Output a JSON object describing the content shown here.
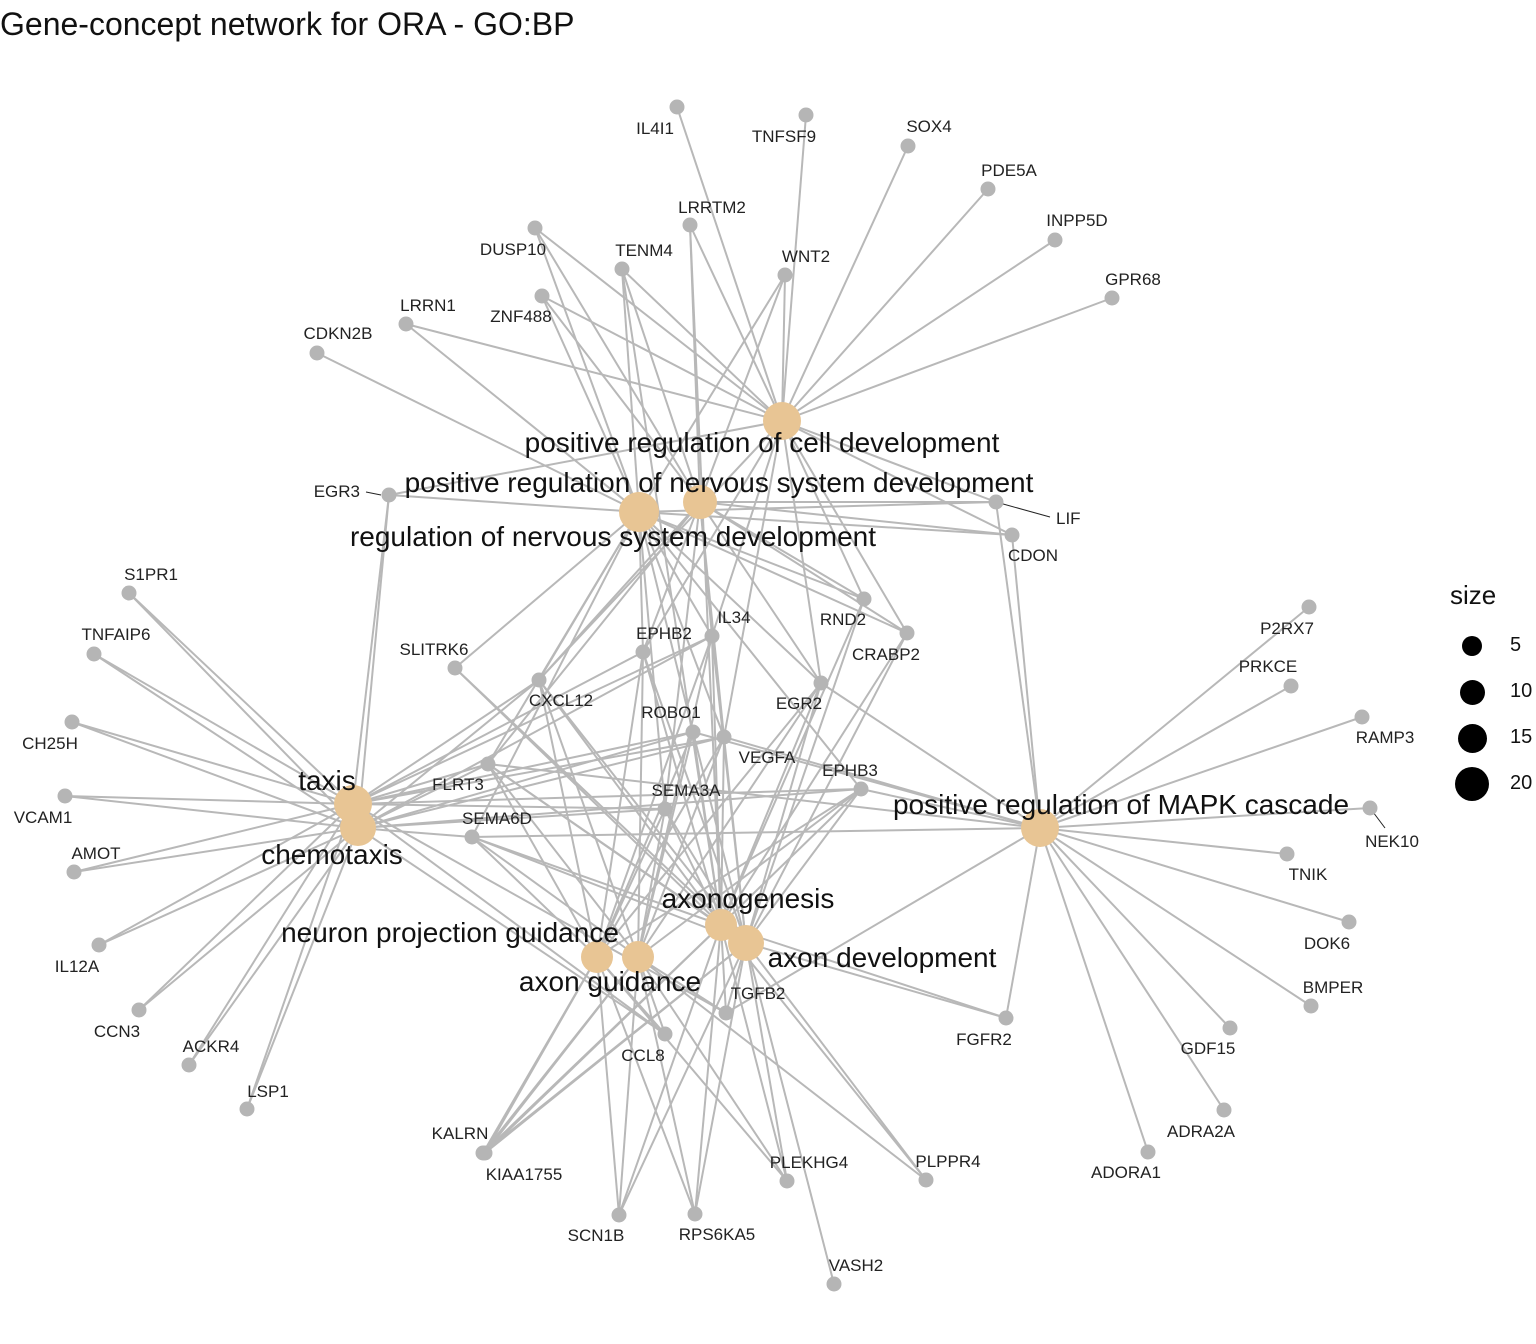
{
  "title": "Gene-concept network for ORA - GO:BP",
  "colors": {
    "edge": "#b8b8b8",
    "gene": "#b5b5b5",
    "category": "#e8c594"
  },
  "legend": {
    "title": "size",
    "entries": [
      {
        "label": "5",
        "size": 5
      },
      {
        "label": "10",
        "size": 10
      },
      {
        "label": "15",
        "size": 15
      },
      {
        "label": "20",
        "size": 20
      }
    ]
  },
  "categories": [
    {
      "id": "pos_cell_dev",
      "label": "positive regulation of cell development"
    },
    {
      "id": "pos_nerv_dev",
      "label": "positive regulation of nervous system development"
    },
    {
      "id": "reg_nerv_dev",
      "label": "regulation of nervous system development"
    },
    {
      "id": "taxis",
      "label": "taxis"
    },
    {
      "id": "chemotaxis",
      "label": "chemotaxis"
    },
    {
      "id": "mapk",
      "label": "positive regulation of MAPK cascade"
    },
    {
      "id": "axonogenesis",
      "label": "axonogenesis"
    },
    {
      "id": "axon_dev",
      "label": "axon development"
    },
    {
      "id": "neuron_proj",
      "label": "neuron projection guidance"
    },
    {
      "id": "axon_guid",
      "label": "axon guidance"
    }
  ],
  "genes": [
    {
      "id": "IL4I1",
      "label": "IL4I1"
    },
    {
      "id": "TNFSF9",
      "label": "TNFSF9"
    },
    {
      "id": "SOX4",
      "label": "SOX4"
    },
    {
      "id": "PDE5A",
      "label": "PDE5A"
    },
    {
      "id": "INPP5D",
      "label": "INPP5D"
    },
    {
      "id": "GPR68",
      "label": "GPR68"
    },
    {
      "id": "LRRTM2",
      "label": "LRRTM2"
    },
    {
      "id": "DUSP10",
      "label": "DUSP10"
    },
    {
      "id": "TENM4",
      "label": "TENM4"
    },
    {
      "id": "WNT2",
      "label": "WNT2"
    },
    {
      "id": "ZNF488",
      "label": "ZNF488"
    },
    {
      "id": "LRRN1",
      "label": "LRRN1"
    },
    {
      "id": "CDKN2B",
      "label": "CDKN2B"
    },
    {
      "id": "EGR3",
      "label": "EGR3"
    },
    {
      "id": "LIF",
      "label": "LIF"
    },
    {
      "id": "CDON",
      "label": "CDON"
    },
    {
      "id": "S1PR1",
      "label": "S1PR1"
    },
    {
      "id": "TNFAIP6",
      "label": "TNFAIP6"
    },
    {
      "id": "CH25H",
      "label": "CH25H"
    },
    {
      "id": "VCAM1",
      "label": "VCAM1"
    },
    {
      "id": "AMOT",
      "label": "AMOT"
    },
    {
      "id": "IL12A",
      "label": "IL12A"
    },
    {
      "id": "CCN3",
      "label": "CCN3"
    },
    {
      "id": "ACKR4",
      "label": "ACKR4"
    },
    {
      "id": "LSP1",
      "label": "LSP1"
    },
    {
      "id": "SLITRK6",
      "label": "SLITRK6"
    },
    {
      "id": "EPHB2",
      "label": "EPHB2"
    },
    {
      "id": "IL34",
      "label": "IL34"
    },
    {
      "id": "RND2",
      "label": "RND2"
    },
    {
      "id": "CRABP2",
      "label": "CRABP2"
    },
    {
      "id": "CXCL12",
      "label": "CXCL12"
    },
    {
      "id": "ROBO1",
      "label": "ROBO1"
    },
    {
      "id": "EGR2",
      "label": "EGR2"
    },
    {
      "id": "VEGFA",
      "label": "VEGFA"
    },
    {
      "id": "FLRT3",
      "label": "FLRT3"
    },
    {
      "id": "EPHB3",
      "label": "EPHB3"
    },
    {
      "id": "SEMA3A",
      "label": "SEMA3A"
    },
    {
      "id": "SEMA6D",
      "label": "SEMA6D"
    },
    {
      "id": "P2RX7",
      "label": "P2RX7"
    },
    {
      "id": "PRKCE",
      "label": "PRKCE"
    },
    {
      "id": "RAMP3",
      "label": "RAMP3"
    },
    {
      "id": "NEK10",
      "label": "NEK10"
    },
    {
      "id": "TNIK",
      "label": "TNIK"
    },
    {
      "id": "DOK6",
      "label": "DOK6"
    },
    {
      "id": "BMPER",
      "label": "BMPER"
    },
    {
      "id": "GDF15",
      "label": "GDF15"
    },
    {
      "id": "ADRA2A",
      "label": "ADRA2A"
    },
    {
      "id": "ADORA1",
      "label": "ADORA1"
    },
    {
      "id": "FGFR2",
      "label": "FGFR2"
    },
    {
      "id": "TGFB2",
      "label": "TGFB2"
    },
    {
      "id": "CCL8",
      "label": "CCL8"
    },
    {
      "id": "KALRN",
      "label": "KALRN"
    },
    {
      "id": "KIAA1755",
      "label": "KIAA1755"
    },
    {
      "id": "SCN1B",
      "label": "SCN1B"
    },
    {
      "id": "RPS6KA5",
      "label": "RPS6KA5"
    },
    {
      "id": "PLEKHG4",
      "label": "PLEKHG4"
    },
    {
      "id": "PLPPR4",
      "label": "PLPPR4"
    },
    {
      "id": "VASH2",
      "label": "VASH2"
    }
  ],
  "edges": [
    [
      "pos_cell_dev",
      "IL4I1"
    ],
    [
      "pos_cell_dev",
      "TNFSF9"
    ],
    [
      "pos_cell_dev",
      "SOX4"
    ],
    [
      "pos_cell_dev",
      "PDE5A"
    ],
    [
      "pos_cell_dev",
      "INPP5D"
    ],
    [
      "pos_cell_dev",
      "GPR68"
    ],
    [
      "pos_cell_dev",
      "LRRTM2"
    ],
    [
      "pos_cell_dev",
      "DUSP10"
    ],
    [
      "pos_cell_dev",
      "TENM4"
    ],
    [
      "pos_cell_dev",
      "WNT2"
    ],
    [
      "pos_cell_dev",
      "ZNF488"
    ],
    [
      "pos_cell_dev",
      "LRRN1"
    ],
    [
      "pos_cell_dev",
      "CDON"
    ],
    [
      "pos_cell_dev",
      "LIF"
    ],
    [
      "pos_cell_dev",
      "EGR2"
    ],
    [
      "pos_cell_dev",
      "RND2"
    ],
    [
      "pos_cell_dev",
      "CRABP2"
    ],
    [
      "pos_cell_dev",
      "EPHB2"
    ],
    [
      "pos_cell_dev",
      "IL34"
    ],
    [
      "pos_cell_dev",
      "CXCL12"
    ],
    [
      "pos_cell_dev",
      "VEGFA"
    ],
    [
      "pos_cell_dev",
      "EGR3"
    ],
    [
      "pos_nerv_dev",
      "DUSP10"
    ],
    [
      "pos_nerv_dev",
      "TENM4"
    ],
    [
      "pos_nerv_dev",
      "LRRTM2"
    ],
    [
      "pos_nerv_dev",
      "WNT2"
    ],
    [
      "pos_nerv_dev",
      "ZNF488"
    ],
    [
      "pos_nerv_dev",
      "LIF"
    ],
    [
      "pos_nerv_dev",
      "CDON"
    ],
    [
      "pos_nerv_dev",
      "RND2"
    ],
    [
      "pos_nerv_dev",
      "CRABP2"
    ],
    [
      "pos_nerv_dev",
      "EPHB2"
    ],
    [
      "pos_nerv_dev",
      "IL34"
    ],
    [
      "pos_nerv_dev",
      "EGR2"
    ],
    [
      "pos_nerv_dev",
      "VEGFA"
    ],
    [
      "pos_nerv_dev",
      "SEMA3A"
    ],
    [
      "pos_nerv_dev",
      "FLRT3"
    ],
    [
      "pos_nerv_dev",
      "CXCL12"
    ],
    [
      "reg_nerv_dev",
      "LRRN1"
    ],
    [
      "reg_nerv_dev",
      "CDKN2B"
    ],
    [
      "reg_nerv_dev",
      "TENM4"
    ],
    [
      "reg_nerv_dev",
      "DUSP10"
    ],
    [
      "reg_nerv_dev",
      "WNT2"
    ],
    [
      "reg_nerv_dev",
      "ZNF488"
    ],
    [
      "reg_nerv_dev",
      "LIF"
    ],
    [
      "reg_nerv_dev",
      "CDON"
    ],
    [
      "reg_nerv_dev",
      "SLITRK6"
    ],
    [
      "reg_nerv_dev",
      "CXCL12"
    ],
    [
      "reg_nerv_dev",
      "EPHB2"
    ],
    [
      "reg_nerv_dev",
      "IL34"
    ],
    [
      "reg_nerv_dev",
      "ROBO1"
    ],
    [
      "reg_nerv_dev",
      "VEGFA"
    ],
    [
      "reg_nerv_dev",
      "EGR2"
    ],
    [
      "reg_nerv_dev",
      "RND2"
    ],
    [
      "reg_nerv_dev",
      "CRABP2"
    ],
    [
      "reg_nerv_dev",
      "SEMA3A"
    ],
    [
      "reg_nerv_dev",
      "FLRT3"
    ],
    [
      "reg_nerv_dev",
      "SEMA6D"
    ],
    [
      "reg_nerv_dev",
      "EPHB3"
    ],
    [
      "reg_nerv_dev",
      "EGR3"
    ],
    [
      "taxis",
      "S1PR1"
    ],
    [
      "taxis",
      "TNFAIP6"
    ],
    [
      "taxis",
      "CH25H"
    ],
    [
      "taxis",
      "VCAM1"
    ],
    [
      "taxis",
      "AMOT"
    ],
    [
      "taxis",
      "IL12A"
    ],
    [
      "taxis",
      "CCN3"
    ],
    [
      "taxis",
      "ACKR4"
    ],
    [
      "taxis",
      "LSP1"
    ],
    [
      "taxis",
      "CXCL12"
    ],
    [
      "taxis",
      "IL34"
    ],
    [
      "taxis",
      "ROBO1"
    ],
    [
      "taxis",
      "VEGFA"
    ],
    [
      "taxis",
      "FLRT3"
    ],
    [
      "taxis",
      "SEMA3A"
    ],
    [
      "taxis",
      "EGR3"
    ],
    [
      "taxis",
      "EPHB2"
    ],
    [
      "taxis",
      "CCL8"
    ],
    [
      "taxis",
      "TGFB2"
    ],
    [
      "taxis",
      "EPHB3"
    ],
    [
      "chemotaxis",
      "S1PR1"
    ],
    [
      "chemotaxis",
      "TNFAIP6"
    ],
    [
      "chemotaxis",
      "CH25H"
    ],
    [
      "chemotaxis",
      "VCAM1"
    ],
    [
      "chemotaxis",
      "AMOT"
    ],
    [
      "chemotaxis",
      "IL12A"
    ],
    [
      "chemotaxis",
      "CCN3"
    ],
    [
      "chemotaxis",
      "ACKR4"
    ],
    [
      "chemotaxis",
      "LSP1"
    ],
    [
      "chemotaxis",
      "CXCL12"
    ],
    [
      "chemotaxis",
      "ROBO1"
    ],
    [
      "chemotaxis",
      "VEGFA"
    ],
    [
      "chemotaxis",
      "SEMA6D"
    ],
    [
      "chemotaxis",
      "CCL8"
    ],
    [
      "chemotaxis",
      "SEMA3A"
    ],
    [
      "chemotaxis",
      "FLRT3"
    ],
    [
      "chemotaxis",
      "EGR3"
    ],
    [
      "chemotaxis",
      "EPHB3"
    ],
    [
      "chemotaxis",
      "IL34"
    ],
    [
      "mapk",
      "P2RX7"
    ],
    [
      "mapk",
      "PRKCE"
    ],
    [
      "mapk",
      "RAMP3"
    ],
    [
      "mapk",
      "NEK10"
    ],
    [
      "mapk",
      "TNIK"
    ],
    [
      "mapk",
      "DOK6"
    ],
    [
      "mapk",
      "BMPER"
    ],
    [
      "mapk",
      "GDF15"
    ],
    [
      "mapk",
      "ADRA2A"
    ],
    [
      "mapk",
      "ADORA1"
    ],
    [
      "mapk",
      "FGFR2"
    ],
    [
      "mapk",
      "LIF"
    ],
    [
      "mapk",
      "CDON"
    ],
    [
      "mapk",
      "VEGFA"
    ],
    [
      "mapk",
      "EPHB3"
    ],
    [
      "mapk",
      "SEMA6D"
    ],
    [
      "mapk",
      "EGR2"
    ],
    [
      "mapk",
      "TGFB2"
    ],
    [
      "mapk",
      "ROBO1"
    ],
    [
      "mapk",
      "FLRT3"
    ],
    [
      "axonogenesis",
      "EPHB2"
    ],
    [
      "axonogenesis",
      "IL34"
    ],
    [
      "axonogenesis",
      "CXCL12"
    ],
    [
      "axonogenesis",
      "ROBO1"
    ],
    [
      "axonogenesis",
      "VEGFA"
    ],
    [
      "axonogenesis",
      "FLRT3"
    ],
    [
      "axonogenesis",
      "SEMA3A"
    ],
    [
      "axonogenesis",
      "SEMA6D"
    ],
    [
      "axonogenesis",
      "EPHB3"
    ],
    [
      "axonogenesis",
      "RND2"
    ],
    [
      "axonogenesis",
      "CRABP2"
    ],
    [
      "axonogenesis",
      "EGR2"
    ],
    [
      "axonogenesis",
      "SLITRK6"
    ],
    [
      "axonogenesis",
      "TGFB2"
    ],
    [
      "axonogenesis",
      "KALRN"
    ],
    [
      "axonogenesis",
      "KIAA1755"
    ],
    [
      "axonogenesis",
      "SCN1B"
    ],
    [
      "axonogenesis",
      "RPS6KA5"
    ],
    [
      "axonogenesis",
      "PLEKHG4"
    ],
    [
      "axonogenesis",
      "PLPPR4"
    ],
    [
      "axonogenesis",
      "FGFR2"
    ],
    [
      "axonogenesis",
      "TENM4"
    ],
    [
      "axonogenesis",
      "LRRTM2"
    ],
    [
      "axon_dev",
      "EPHB2"
    ],
    [
      "axon_dev",
      "IL34"
    ],
    [
      "axon_dev",
      "CXCL12"
    ],
    [
      "axon_dev",
      "ROBO1"
    ],
    [
      "axon_dev",
      "VEGFA"
    ],
    [
      "axon_dev",
      "FLRT3"
    ],
    [
      "axon_dev",
      "SEMA3A"
    ],
    [
      "axon_dev",
      "SEMA6D"
    ],
    [
      "axon_dev",
      "EPHB3"
    ],
    [
      "axon_dev",
      "RND2"
    ],
    [
      "axon_dev",
      "CRABP2"
    ],
    [
      "axon_dev",
      "EGR2"
    ],
    [
      "axon_dev",
      "TGFB2"
    ],
    [
      "axon_dev",
      "KALRN"
    ],
    [
      "axon_dev",
      "SCN1B"
    ],
    [
      "axon_dev",
      "RPS6KA5"
    ],
    [
      "axon_dev",
      "PLEKHG4"
    ],
    [
      "axon_dev",
      "PLPPR4"
    ],
    [
      "axon_dev",
      "VASH2"
    ],
    [
      "axon_dev",
      "FGFR2"
    ],
    [
      "axon_dev",
      "SLITRK6"
    ],
    [
      "axon_dev",
      "KIAA1755"
    ],
    [
      "neuron_proj",
      "EPHB2"
    ],
    [
      "neuron_proj",
      "CXCL12"
    ],
    [
      "neuron_proj",
      "ROBO1"
    ],
    [
      "neuron_proj",
      "VEGFA"
    ],
    [
      "neuron_proj",
      "FLRT3"
    ],
    [
      "neuron_proj",
      "SEMA3A"
    ],
    [
      "neuron_proj",
      "SEMA6D"
    ],
    [
      "neuron_proj",
      "EPHB3"
    ],
    [
      "neuron_proj",
      "CCL8"
    ],
    [
      "neuron_proj",
      "KALRN"
    ],
    [
      "neuron_proj",
      "KIAA1755"
    ],
    [
      "neuron_proj",
      "SCN1B"
    ],
    [
      "neuron_proj",
      "RPS6KA5"
    ],
    [
      "neuron_proj",
      "PLEKHG4"
    ],
    [
      "neuron_proj",
      "IL34"
    ],
    [
      "neuron_proj",
      "EGR2"
    ],
    [
      "axon_guid",
      "EPHB2"
    ],
    [
      "axon_guid",
      "CXCL12"
    ],
    [
      "axon_guid",
      "ROBO1"
    ],
    [
      "axon_guid",
      "VEGFA"
    ],
    [
      "axon_guid",
      "FLRT3"
    ],
    [
      "axon_guid",
      "SEMA3A"
    ],
    [
      "axon_guid",
      "SEMA6D"
    ],
    [
      "axon_guid",
      "EPHB3"
    ],
    [
      "axon_guid",
      "CCL8"
    ],
    [
      "axon_guid",
      "KALRN"
    ],
    [
      "axon_guid",
      "KIAA1755"
    ],
    [
      "axon_guid",
      "SCN1B"
    ],
    [
      "axon_guid",
      "RPS6KA5"
    ],
    [
      "axon_guid",
      "PLEKHG4"
    ],
    [
      "axon_guid",
      "IL34"
    ],
    [
      "axon_guid",
      "EGR2"
    ],
    [
      "axon_guid",
      "TGFB2"
    ],
    [
      "axon_guid",
      "PLPPR4"
    ]
  ]
}
